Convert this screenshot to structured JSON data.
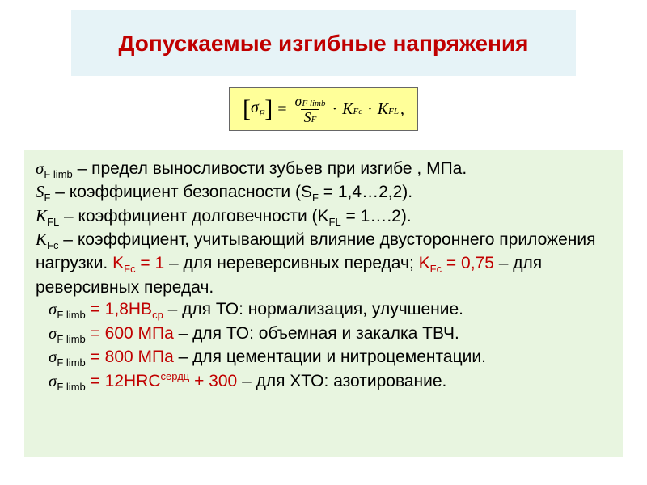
{
  "colors": {
    "title_bg": "#e6f3f7",
    "title_text": "#c00000",
    "formula_bg": "#ffff99",
    "formula_border": "#666666",
    "body_bg": "#e8f5e0",
    "text": "#000000",
    "accent_red": "#c00000",
    "page_bg": "#ffffff"
  },
  "typography": {
    "title_fontsize": 28,
    "body_fontsize": 21,
    "formula_fontsize": 20,
    "font_family_body": "Arial",
    "font_family_formula": "Times New Roman"
  },
  "title": "Допускаемые изгибные напряжения",
  "formula": {
    "lhs_symbol": "σ",
    "lhs_sub": "F",
    "numerator_symbol": "σ",
    "numerator_sub": "F limb",
    "denominator_symbol": "S",
    "denominator_sub": "F",
    "term1_symbol": "K",
    "term1_sub": "Fc",
    "term2_symbol": "K",
    "term2_sub": "FL",
    "trailing": ","
  },
  "definitions": {
    "line1_sym": "σ",
    "line1_sub": "F limb",
    "line1_text": " – предел выносливости зубьев при изгибе , МПа.",
    "line2_sym": "S",
    "line2_sub": "F",
    "line2_text": " – коэффициент безопасности (S",
    "line2_sub2": "F",
    "line2_text2": " = 1,4…2,2).",
    "line3_sym": "K",
    "line3_sub": "FL",
    "line3_text": " – коэффициент долговечности (K",
    "line3_sub2": "FL",
    "line3_text2": " = 1….2).",
    "line4_sym": "K",
    "line4_sub": "Fc",
    "line4_text": " – коэффициент, учитывающий влияние двустороннего приложения нагрузки. ",
    "line4_red1_pre": "K",
    "line4_red1_sub": "Fc",
    "line4_red1_post": " = 1",
    "line4_mid": " – для нереверсивных передач; ",
    "line4_red2_pre": "K",
    "line4_red2_sub": "Fc",
    "line4_red2_post": " = 0,75",
    "line4_end": " – для реверсивных передач.",
    "cases": [
      {
        "sym": "σ",
        "sub": "F limb",
        "red": " = 1,8HB",
        "red_sub": "ср",
        "text": " – для ТО: нормализация, улучшение."
      },
      {
        "sym": "σ",
        "sub": "F limb",
        "red": " = 600 МПа",
        "red_sub": "",
        "text": " – для ТО: объемная и закалка ТВЧ."
      },
      {
        "sym": "σ",
        "sub": "F limb",
        "red": " = 800 МПа",
        "red_sub": "",
        "text": " – для цементации и нитроцементации."
      },
      {
        "sym": "σ",
        "sub": "F limb",
        "red": " = 12HRC",
        "red_sup": "сердц",
        "red_post": " + 300",
        "text": " – для ХТО: азотирование."
      }
    ]
  }
}
